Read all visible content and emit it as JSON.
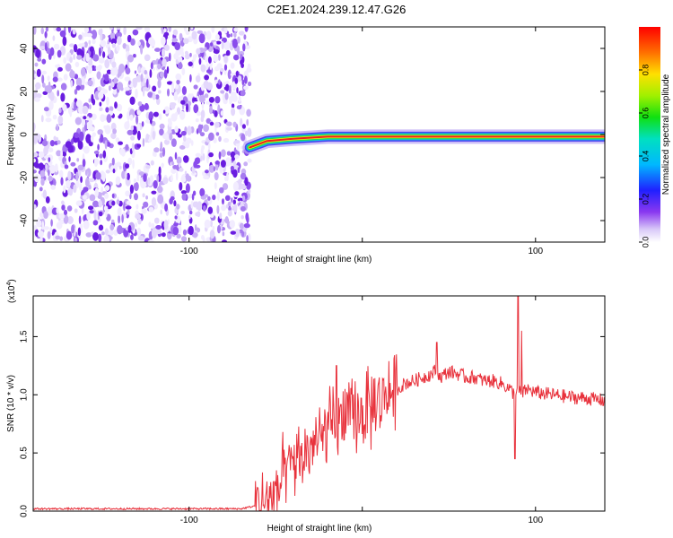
{
  "title": "C2E1.2024.239.12.47.G26",
  "colors": {
    "signal": "#e8323c",
    "speckle": "#6a1de0",
    "axis": "#000000"
  },
  "chart_data": [
    {
      "type": "heatmap",
      "xlabel": "Height of straight line (km)",
      "ylabel": "Frequency (Hz)",
      "xlim": [
        -190,
        140
      ],
      "ylim": [
        -50,
        50
      ],
      "xticks": [
        -100,
        0,
        100
      ],
      "xtick_labels": [
        "-100",
        "",
        "100"
      ],
      "yticks": [
        -40,
        -20,
        0,
        20,
        40
      ],
      "ytick_labels": [
        "-40",
        "-20",
        "0",
        "20",
        "40"
      ],
      "noise_region_x": [
        -190,
        -65
      ],
      "signal_band": [
        {
          "x": -65,
          "y": -6
        },
        {
          "x": -55,
          "y": -3
        },
        {
          "x": -40,
          "y": -2
        },
        {
          "x": -20,
          "y": -1
        },
        {
          "x": 0,
          "y": -1
        },
        {
          "x": 20,
          "y": -1
        },
        {
          "x": 60,
          "y": -1
        },
        {
          "x": 80,
          "y": -1
        },
        {
          "x": 100,
          "y": -1
        },
        {
          "x": 140,
          "y": -1
        }
      ],
      "colorbar": {
        "label": "Normalized spectral amplitude",
        "ticks": [
          0.0,
          0.2,
          0.4,
          0.6,
          0.8
        ],
        "tick_labels": [
          "0.0",
          "0.2",
          "0.4",
          "0.6",
          "0.8"
        ],
        "range": [
          0,
          1
        ]
      }
    },
    {
      "type": "line",
      "xlabel": "Height of straight line (km)",
      "ylabel": "SNR (10 * v/v)",
      "y_multiplier": "(x10",
      "y_multiplier_exp": "4",
      "y_multiplier_close": ")",
      "xlim": [
        -190,
        140
      ],
      "ylim": [
        0,
        1.85
      ],
      "xticks": [
        -100,
        0,
        100
      ],
      "xtick_labels": [
        "-100",
        "",
        "100"
      ],
      "yticks": [
        0.0,
        0.5,
        1.0,
        1.5
      ],
      "ytick_labels": [
        "0.0",
        "0.5",
        "1.0",
        "1.5"
      ],
      "series": [
        {
          "x": [
            -190,
            -150,
            -100,
            -70,
            -60,
            -50,
            -45,
            -40,
            -35,
            -30,
            -25,
            -20,
            -15,
            -10,
            -5,
            0,
            5,
            10,
            15,
            20,
            25,
            30,
            35,
            40,
            43,
            45,
            50,
            55,
            60,
            65,
            70,
            75,
            80,
            85,
            88,
            90,
            92,
            95,
            100,
            110,
            120,
            130,
            140
          ],
          "y": [
            0.02,
            0.02,
            0.02,
            0.02,
            0.05,
            0.15,
            0.3,
            0.42,
            0.45,
            0.55,
            0.6,
            0.7,
            0.75,
            0.8,
            0.78,
            0.85,
            0.88,
            0.95,
            1.02,
            1.05,
            1.1,
            1.12,
            1.15,
            1.18,
            1.22,
            1.15,
            1.2,
            1.18,
            1.15,
            1.15,
            1.12,
            1.12,
            1.1,
            1.05,
            1.0,
            1.05,
            1.0,
            1.05,
            1.02,
            1.0,
            0.98,
            0.97,
            0.95
          ],
          "peaks": [
            {
              "x": -15,
              "y": 1.25
            },
            {
              "x": -10,
              "y": 1.05
            },
            {
              "x": 43,
              "y": 1.45
            },
            {
              "x": 88,
              "y": 0.45
            },
            {
              "x": 90,
              "y": 1.85
            },
            {
              "x": 92,
              "y": 1.55
            }
          ]
        }
      ]
    }
  ]
}
